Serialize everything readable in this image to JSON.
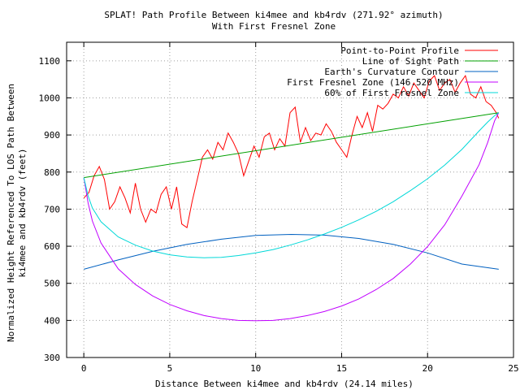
{
  "chart_data": {
    "type": "line",
    "title": "SPLAT! Path Profile Between ki4mee and kb4rdv (271.92° azimuth)",
    "subtitle": "With First Fresnel Zone",
    "xlabel": "Distance Between ki4mee and kb4rdv (24.14 miles)",
    "ylabel_line1": "Normalized Height Referenced To LOS Path Between",
    "ylabel_line2": "ki4mee and kb4rdv (feet)",
    "xlim": [
      -1,
      25
    ],
    "ylim": [
      300,
      1150
    ],
    "xticks": [
      0,
      5,
      10,
      15,
      20,
      25
    ],
    "yticks": [
      300,
      400,
      500,
      600,
      700,
      800,
      900,
      1000,
      1100
    ],
    "grid": true,
    "legend_position": "top-right",
    "path_length_miles": 24.14,
    "series": [
      {
        "name": "Point-to-Point Profile",
        "color": "#ff0000",
        "x": [
          0,
          0.3,
          0.6,
          0.9,
          1.2,
          1.5,
          1.8,
          2.1,
          2.4,
          2.7,
          3.0,
          3.3,
          3.6,
          3.9,
          4.2,
          4.5,
          4.8,
          5.1,
          5.4,
          5.7,
          6.0,
          6.3,
          6.6,
          6.9,
          7.2,
          7.5,
          7.8,
          8.1,
          8.4,
          8.7,
          9.0,
          9.3,
          9.6,
          9.9,
          10.2,
          10.5,
          10.8,
          11.1,
          11.4,
          11.7,
          12.0,
          12.3,
          12.6,
          12.9,
          13.2,
          13.5,
          13.8,
          14.1,
          14.4,
          14.7,
          15.0,
          15.3,
          15.6,
          15.9,
          16.2,
          16.5,
          16.8,
          17.1,
          17.4,
          17.7,
          18.0,
          18.3,
          18.6,
          18.9,
          19.2,
          19.5,
          19.8,
          20.1,
          20.4,
          20.7,
          21.0,
          21.3,
          21.6,
          21.9,
          22.2,
          22.5,
          22.8,
          23.1,
          23.4,
          23.7,
          24.0,
          24.14
        ],
        "y": [
          730,
          745,
          790,
          815,
          780,
          700,
          720,
          760,
          730,
          690,
          770,
          700,
          665,
          700,
          690,
          740,
          760,
          700,
          760,
          660,
          650,
          720,
          780,
          840,
          860,
          835,
          880,
          860,
          905,
          880,
          850,
          790,
          830,
          870,
          840,
          895,
          905,
          860,
          890,
          870,
          960,
          975,
          880,
          920,
          885,
          905,
          900,
          930,
          910,
          880,
          860,
          840,
          900,
          950,
          920,
          960,
          910,
          980,
          970,
          985,
          1010,
          1000,
          1030,
          1005,
          1040,
          1020,
          1000,
          1045,
          1060,
          1020,
          1040,
          1050,
          1015,
          1040,
          1060,
          1010,
          1000,
          1030,
          990,
          980,
          960,
          945
        ]
      },
      {
        "name": "Line of Sight Path",
        "color": "#00a000",
        "x": [
          0,
          24.14
        ],
        "y": [
          785,
          960
        ]
      },
      {
        "name": "Earth's Curvature Contour",
        "color": "#0060c0",
        "x": [
          0,
          2,
          4,
          6,
          8,
          10,
          12.07,
          14,
          16,
          18,
          20,
          22,
          24.14
        ],
        "y": [
          538,
          563,
          586,
          605,
          619,
          629,
          632,
          630,
          621,
          605,
          582,
          552,
          538
        ]
      },
      {
        "name": "First Fresnel Zone (146.520 MHz)",
        "color": "#c000ff",
        "x": [
          0,
          0.25,
          0.5,
          1,
          2,
          3,
          4,
          5,
          6,
          7,
          8,
          9,
          10,
          11,
          12,
          13,
          14,
          15,
          16,
          17,
          18,
          19,
          20,
          21,
          22,
          23,
          23.5,
          23.9,
          24.14
        ],
        "y": [
          785,
          717,
          668,
          609,
          539,
          497,
          466,
          443,
          426,
          413,
          405,
          400,
          399,
          400,
          405,
          413,
          424,
          439,
          458,
          483,
          513,
          552,
          599,
          658,
          735,
          820,
          880,
          938,
          960
        ]
      },
      {
        "name": "60% of First Fresnel Zone",
        "color": "#00d8d8",
        "x": [
          0,
          0.25,
          0.5,
          1,
          2,
          3,
          4,
          5,
          6,
          7,
          8,
          9,
          10,
          11,
          12,
          13,
          14,
          15,
          16,
          17,
          18,
          19,
          20,
          21,
          22,
          23,
          23.5,
          23.9,
          24.14
        ],
        "y": [
          785,
          736,
          703,
          666,
          625,
          603,
          587,
          577,
          571,
          569,
          570,
          575,
          582,
          591,
          603,
          617,
          633,
          651,
          671,
          694,
          720,
          750,
          782,
          819,
          861,
          911,
          935,
          952,
          960
        ]
      }
    ]
  }
}
